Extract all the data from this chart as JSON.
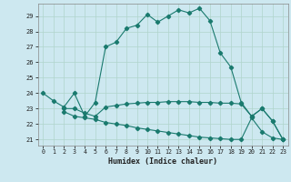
{
  "title": "",
  "xlabel": "Humidex (Indice chaleur)",
  "bg_color": "#cde8f0",
  "line_color": "#1a7a6e",
  "grid_color": "#b0d4cc",
  "xlim": [
    -0.5,
    23.5
  ],
  "ylim": [
    20.6,
    29.8
  ],
  "xticks": [
    0,
    1,
    2,
    3,
    4,
    5,
    6,
    7,
    8,
    9,
    10,
    11,
    12,
    13,
    14,
    15,
    16,
    17,
    18,
    19,
    20,
    21,
    22,
    23
  ],
  "yticks": [
    21,
    22,
    23,
    24,
    25,
    26,
    27,
    28,
    29
  ],
  "line1_x": [
    0,
    1,
    2,
    3,
    4,
    5,
    6,
    7,
    8,
    9,
    10,
    11,
    12,
    13,
    14,
    15,
    16,
    17,
    18,
    19,
    20,
    21,
    22,
    23
  ],
  "line1_y": [
    24.0,
    23.5,
    23.1,
    24.0,
    22.5,
    23.4,
    27.0,
    27.3,
    28.2,
    28.4,
    29.1,
    28.6,
    29.0,
    29.4,
    29.2,
    29.5,
    28.7,
    26.6,
    25.7,
    23.4,
    22.5,
    23.0,
    22.2,
    21.0
  ],
  "line2_x": [
    2,
    3,
    4,
    5,
    6,
    7,
    8,
    9,
    10,
    11,
    12,
    13,
    14,
    15,
    16,
    17,
    18,
    19,
    20,
    21,
    22,
    23
  ],
  "line2_y": [
    23.0,
    23.0,
    22.7,
    22.5,
    23.1,
    23.2,
    23.3,
    23.35,
    23.4,
    23.4,
    23.45,
    23.45,
    23.45,
    23.4,
    23.4,
    23.35,
    23.35,
    23.3,
    22.5,
    23.0,
    22.2,
    21.0
  ],
  "line3_x": [
    2,
    3,
    4,
    5,
    6,
    7,
    8,
    9,
    10,
    11,
    12,
    13,
    14,
    15,
    16,
    17,
    18,
    19,
    20,
    21,
    22,
    23
  ],
  "line3_y": [
    22.8,
    22.5,
    22.4,
    22.3,
    22.1,
    22.0,
    21.9,
    21.75,
    21.65,
    21.55,
    21.45,
    21.35,
    21.25,
    21.15,
    21.1,
    21.05,
    21.0,
    21.0,
    22.4,
    21.5,
    21.1,
    21.0
  ]
}
